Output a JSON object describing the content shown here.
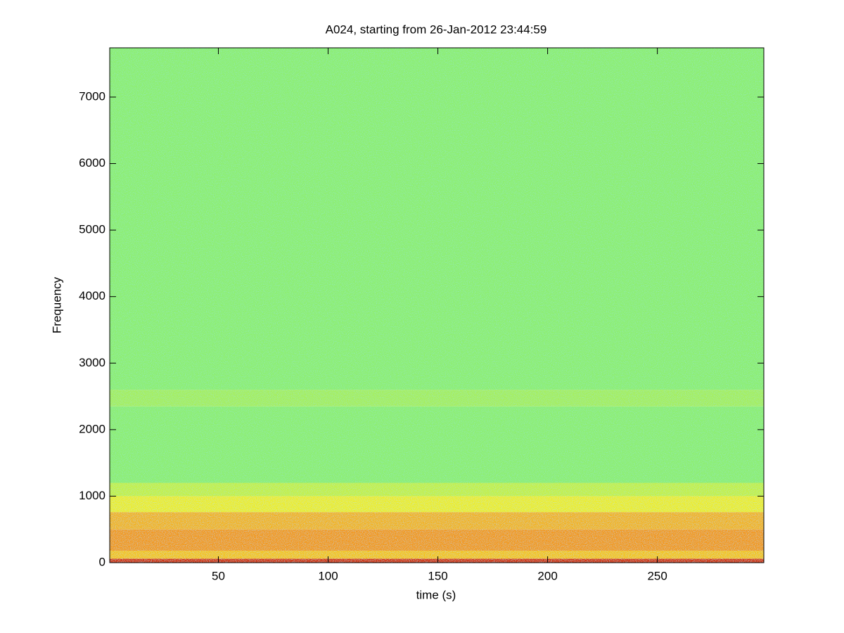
{
  "chart_data": {
    "type": "spectrogram",
    "title": "A024, starting from 26-Jan-2012 23:44:59",
    "x_label": "time (s)",
    "y_label": "Frequency",
    "xlim": [
      0.5,
      298.5
    ],
    "ylim": [
      0,
      7740
    ],
    "xticks": [
      50,
      100,
      150,
      200,
      250
    ],
    "yticks": [
      0,
      1000,
      2000,
      3000,
      4000,
      5000,
      6000,
      7000
    ],
    "bands": [
      {
        "from": 0,
        "to": 60,
        "color": "#d2300e"
      },
      {
        "from": 60,
        "to": 180,
        "color": "#f4c41a"
      },
      {
        "from": 180,
        "to": 500,
        "color": "#f29a1e"
      },
      {
        "from": 500,
        "to": 760,
        "color": "#f2b424"
      },
      {
        "from": 760,
        "to": 1000,
        "color": "#ecec2c"
      },
      {
        "from": 1000,
        "to": 1200,
        "color": "#c4f046"
      },
      {
        "from": 1200,
        "to": 2350,
        "color": "#8eee72"
      },
      {
        "from": 2350,
        "to": 2600,
        "color": "#a6ee5e"
      },
      {
        "from": 2600,
        "to": 7740,
        "color": "#8eee72"
      }
    ]
  }
}
